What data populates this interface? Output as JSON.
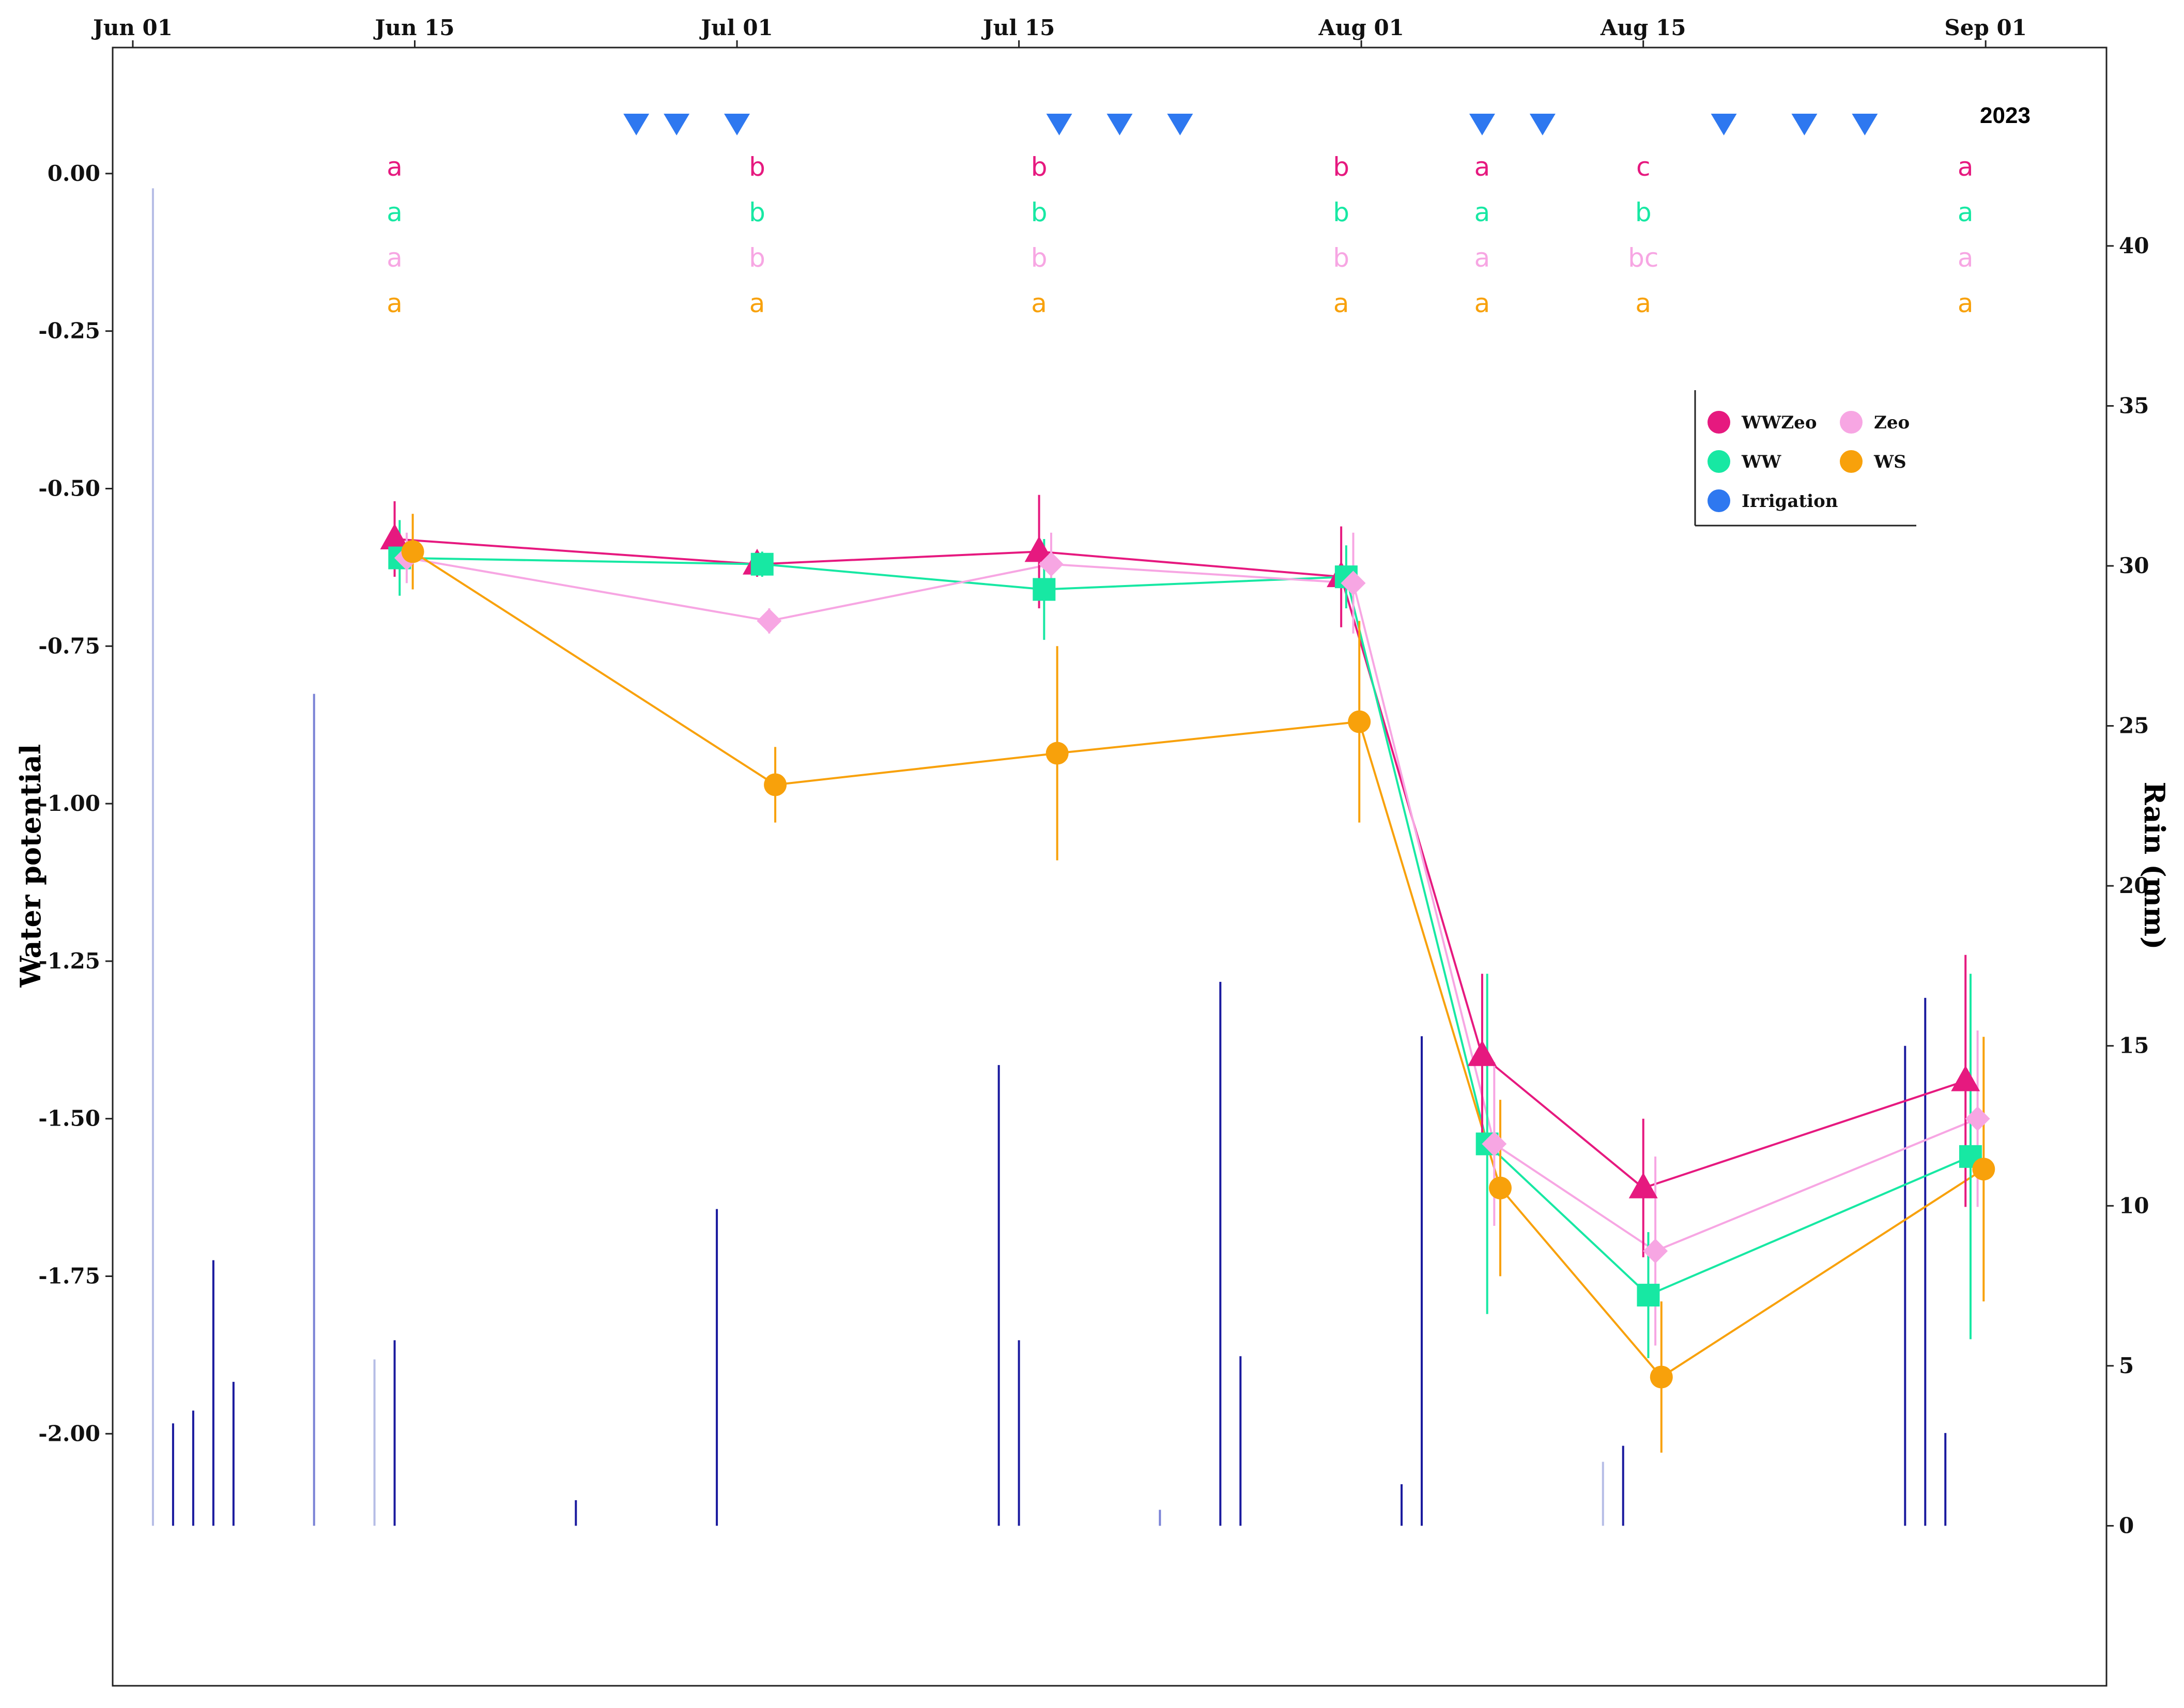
{
  "chart_data": {
    "type": "line",
    "year_label": "2023",
    "ylabel": "Water potential",
    "y2label": "Rain (mm)",
    "ylim": [
      -2.4,
      0.2
    ],
    "y2lim": [
      -5,
      46.2
    ],
    "x_range": [
      "2023-05-31",
      "2023-09-07"
    ],
    "x_ticks": [
      {
        "date": "2023-06-01",
        "label": "Jun 01"
      },
      {
        "date": "2023-06-15",
        "label": "Jun 15"
      },
      {
        "date": "2023-07-01",
        "label": "Jul 01"
      },
      {
        "date": "2023-07-15",
        "label": "Jul 15"
      },
      {
        "date": "2023-08-01",
        "label": "Aug 01"
      },
      {
        "date": "2023-08-15",
        "label": "Aug 15"
      },
      {
        "date": "2023-09-01",
        "label": "Sep 01"
      }
    ],
    "y_ticks": [
      0.0,
      -0.25,
      -0.5,
      -0.75,
      -1.0,
      -1.25,
      -1.5,
      -1.75,
      -2.0
    ],
    "y_tick_labels": [
      "0.00",
      "-0.25",
      "-0.50",
      "-0.75",
      "-1.00",
      "-1.25",
      "-1.50",
      "-1.75",
      "-2.00"
    ],
    "y2_ticks": [
      0,
      5,
      10,
      15,
      20,
      25,
      30,
      35,
      40
    ],
    "y2_tick_labels": [
      "0",
      "5",
      "10",
      "15",
      "20",
      "25",
      "30",
      "35",
      "40"
    ],
    "series": [
      {
        "name": "WWZeo",
        "color": "#e6197f",
        "marker": "triangle",
        "x": [
          "2023-06-14",
          "2023-07-02",
          "2023-07-16",
          "2023-07-31",
          "2023-08-07",
          "2023-08-15",
          "2023-08-31"
        ],
        "y": [
          -0.58,
          -0.62,
          -0.6,
          -0.64,
          -1.4,
          -1.61,
          -1.44
        ],
        "err": [
          0.06,
          0.02,
          0.09,
          0.08,
          0.13,
          0.11,
          0.2
        ]
      },
      {
        "name": "WW",
        "color": "#17e8a3",
        "marker": "square",
        "x": [
          "2023-06-14",
          "2023-07-02",
          "2023-07-16",
          "2023-07-31",
          "2023-08-07",
          "2023-08-15",
          "2023-08-31"
        ],
        "y": [
          -0.61,
          -0.62,
          -0.66,
          -0.64,
          -1.54,
          -1.78,
          -1.56
        ],
        "err": [
          0.06,
          0.02,
          0.08,
          0.05,
          0.27,
          0.1,
          0.29
        ]
      },
      {
        "name": "Zeo",
        "color": "#f7a6e3",
        "marker": "diamond",
        "x": [
          "2023-06-14",
          "2023-07-02",
          "2023-07-16",
          "2023-07-31",
          "2023-08-07",
          "2023-08-15",
          "2023-08-31"
        ],
        "y": [
          -0.61,
          -0.71,
          -0.62,
          -0.65,
          -1.54,
          -1.71,
          -1.5
        ],
        "err": [
          0.04,
          0.02,
          0.05,
          0.08,
          0.13,
          0.15,
          0.14
        ]
      },
      {
        "name": "WS",
        "color": "#f8a10b",
        "marker": "circle",
        "x": [
          "2023-06-14",
          "2023-07-02",
          "2023-07-16",
          "2023-07-31",
          "2023-08-07",
          "2023-08-15",
          "2023-08-31"
        ],
        "y": [
          -0.6,
          -0.97,
          -0.92,
          -0.87,
          -1.61,
          -1.91,
          -1.58
        ],
        "err": [
          0.06,
          0.06,
          0.17,
          0.16,
          0.14,
          0.12,
          0.21
        ]
      }
    ],
    "irrigation": {
      "name": "Irrigation",
      "color": "#2e78f0",
      "dates": [
        "2023-06-26",
        "2023-06-28",
        "2023-07-01",
        "2023-07-17",
        "2023-07-20",
        "2023-07-23",
        "2023-08-07",
        "2023-08-10",
        "2023-08-19",
        "2023-08-23",
        "2023-08-26"
      ]
    },
    "rain": [
      {
        "date": "2023-06-02",
        "mm": 41.8,
        "color": "#b6bde6"
      },
      {
        "date": "2023-06-03",
        "mm": 3.2,
        "color": "#1a1a9e"
      },
      {
        "date": "2023-06-04",
        "mm": 3.6,
        "color": "#1a1a9e"
      },
      {
        "date": "2023-06-05",
        "mm": 8.3,
        "color": "#1a1a9e"
      },
      {
        "date": "2023-06-06",
        "mm": 4.5,
        "color": "#1a1a9e"
      },
      {
        "date": "2023-06-10",
        "mm": 26.0,
        "color": "#7a82d6"
      },
      {
        "date": "2023-06-13",
        "mm": 5.2,
        "color": "#b6bde6"
      },
      {
        "date": "2023-06-14",
        "mm": 5.8,
        "color": "#1a1a9e"
      },
      {
        "date": "2023-06-23",
        "mm": 0.8,
        "color": "#1a1a9e"
      },
      {
        "date": "2023-06-30",
        "mm": 9.9,
        "color": "#1a1a9e"
      },
      {
        "date": "2023-07-14",
        "mm": 14.4,
        "color": "#1a1a9e"
      },
      {
        "date": "2023-07-15",
        "mm": 5.8,
        "color": "#1a1a9e"
      },
      {
        "date": "2023-07-22",
        "mm": 0.5,
        "color": "#7a82d6"
      },
      {
        "date": "2023-07-25",
        "mm": 17.0,
        "color": "#1a1a9e"
      },
      {
        "date": "2023-07-26",
        "mm": 5.3,
        "color": "#1a1a9e"
      },
      {
        "date": "2023-08-03",
        "mm": 1.3,
        "color": "#1a1a9e"
      },
      {
        "date": "2023-08-04",
        "mm": 15.3,
        "color": "#1a1a9e"
      },
      {
        "date": "2023-08-13",
        "mm": 2.0,
        "color": "#b6bde6"
      },
      {
        "date": "2023-08-14",
        "mm": 2.5,
        "color": "#1a1a9e"
      },
      {
        "date": "2023-08-28",
        "mm": 15.0,
        "color": "#1a1a9e"
      },
      {
        "date": "2023-08-29",
        "mm": 16.5,
        "color": "#1a1a9e"
      },
      {
        "date": "2023-08-30",
        "mm": 2.9,
        "color": "#1a1a9e"
      }
    ],
    "significance_letters": [
      {
        "date": "2023-06-14",
        "letters": [
          "a",
          "a",
          "a",
          "a"
        ]
      },
      {
        "date": "2023-07-02",
        "letters": [
          "b",
          "b",
          "b",
          "a"
        ]
      },
      {
        "date": "2023-07-16",
        "letters": [
          "b",
          "b",
          "b",
          "a"
        ]
      },
      {
        "date": "2023-07-31",
        "letters": [
          "b",
          "b",
          "b",
          "a"
        ]
      },
      {
        "date": "2023-08-07",
        "letters": [
          "a",
          "a",
          "a",
          "a"
        ]
      },
      {
        "date": "2023-08-15",
        "letters": [
          "c",
          "b",
          "bc",
          "a"
        ]
      },
      {
        "date": "2023-08-31",
        "letters": [
          "a",
          "a",
          "a",
          "a"
        ]
      }
    ],
    "letter_series_order": [
      "WWZeo",
      "WW",
      "Zeo",
      "WS"
    ],
    "legend": {
      "placement": "top-right",
      "entries": [
        {
          "label": "WWZeo",
          "color": "#e6197f"
        },
        {
          "label": "Zeo",
          "color": "#f7a6e3"
        },
        {
          "label": "WW",
          "color": "#17e8a3"
        },
        {
          "label": "WS",
          "color": "#f8a10b"
        },
        {
          "label": "Irrigation",
          "color": "#2e78f0"
        }
      ]
    },
    "grid": false
  }
}
